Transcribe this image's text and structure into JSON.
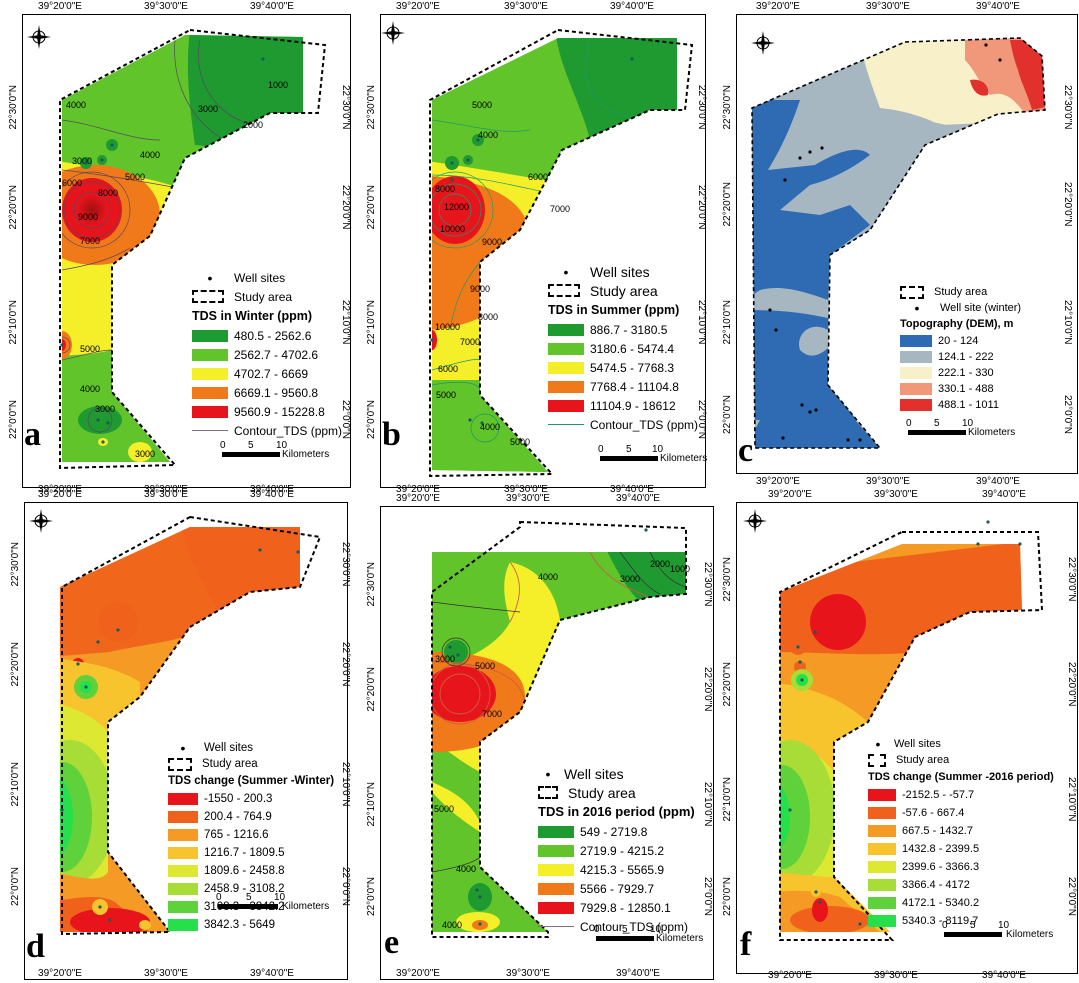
{
  "figure": {
    "x_ticks": [
      "39°20'0\"E",
      "39°30'0\"E",
      "39°40'0\"E"
    ],
    "y_ticks": [
      "22°30'0\"N",
      "22°20'0\"N",
      "22°10'0\"N",
      "22°0'0\"N"
    ],
    "scale": {
      "zero": "0",
      "five": "5",
      "ten": "10",
      "unit": "Kilometers"
    },
    "colors": {
      "dark_green": "#1e9a30",
      "green": "#60c42a",
      "yellow": "#f5ef2a",
      "orange": "#f07a1a",
      "red": "#e8141c",
      "dem_blue": "#2f6bb3",
      "dem_gray": "#a7b7c2",
      "dem_cream": "#f7f0c8",
      "dem_salmon": "#f2987a",
      "dem_red": "#e2302c"
    }
  },
  "panels": [
    {
      "letter": "a",
      "legend": {
        "wells": "Well sites",
        "study": "Study area",
        "title": "TDS in Winter (ppm)",
        "classes": [
          "480.5 - 2562.6",
          "2562.7 - 4702.6",
          "4702.7 - 6669",
          "6669.1 - 9560.8",
          "9560.9 - 15228.8"
        ],
        "colors": [
          "#1e9a30",
          "#60c42a",
          "#f5ef2a",
          "#f07a1a",
          "#e8141c"
        ],
        "contour": "Contour_TDS (ppm)"
      },
      "contour_labels": [
        "1000",
        "2000",
        "3000",
        "4000",
        "4000",
        "5000",
        "6000",
        "7000",
        "8000",
        "9000",
        "3000",
        "5000",
        "3000",
        "4000",
        "3000"
      ]
    },
    {
      "letter": "b",
      "legend": {
        "wells": "Well sites",
        "study": "Study area",
        "title": "TDS in Summer (ppm)",
        "classes": [
          "886.7 - 3180.5",
          "3180.6 - 5474.4",
          "5474.5 - 7768.3",
          "7768.4 - 11104.8",
          "11104.9 - 18612"
        ],
        "colors": [
          "#1e9a30",
          "#60c42a",
          "#f5ef2a",
          "#f07a1a",
          "#e8141c"
        ],
        "contour": "Contour_TDS (ppm)"
      },
      "contour_labels": [
        "5000",
        "4000",
        "6000",
        "7000",
        "8000",
        "10000",
        "12000",
        "9000",
        "9000",
        "10000",
        "8000",
        "7000",
        "6000",
        "5000",
        "4000",
        "5000"
      ]
    },
    {
      "letter": "c",
      "legend": {
        "study": "Study area",
        "wells": "Well site (winter)",
        "title": "Topography (DEM), m",
        "classes": [
          "20 - 124",
          "124.1 - 222",
          "222.1 - 330",
          "330.1 - 488",
          "488.1 - 1011"
        ],
        "colors": [
          "#2f6bb3",
          "#a7b7c2",
          "#f7f0c8",
          "#f2987a",
          "#e2302c"
        ]
      }
    },
    {
      "letter": "d",
      "legend": {
        "wells": "Well sites",
        "study": "Study area",
        "title": "TDS change (Summer -Winter)",
        "classes": [
          "-1550 - 200.3",
          "200.4 - 764.9",
          "765 - 1216.6",
          "1216.7 - 1809.5",
          "1809.6 - 2458.8",
          "2458.9 - 3108.2",
          "3108.3 - 3842.2",
          "3842.3 - 5649"
        ],
        "colors": [
          "#e8141c",
          "#f0621c",
          "#f59a24",
          "#f8c42e",
          "#dde832",
          "#a8dc36",
          "#5fd13a",
          "#25e04a"
        ]
      }
    },
    {
      "letter": "e",
      "legend": {
        "wells": "Well sites",
        "study": "Study area",
        "title": "TDS in 2016 period (ppm)",
        "classes": [
          "549 - 2719.8",
          "2719.9 - 4215.2",
          "4215.3 - 5565.9",
          "5566 - 7929.7",
          "7929.8 - 12850.1"
        ],
        "colors": [
          "#1e9a30",
          "#60c42a",
          "#f5ef2a",
          "#f07a1a",
          "#e8141c"
        ],
        "contour": "Contour_TDS (ppm)"
      },
      "contour_labels": [
        "1000",
        "2000",
        "3000",
        "4000",
        "5000",
        "3000",
        "7000",
        "5000",
        "4000",
        "4000"
      ]
    },
    {
      "letter": "f",
      "legend": {
        "wells": "Well sites",
        "study": "Study area",
        "title": "TDS change (Summer -2016 period)",
        "classes": [
          "-2152.5 - -57.7",
          "-57.6 - 667.4",
          "667.5 - 1432.7",
          "1432.8 - 2399.5",
          "2399.6 - 3366.3",
          "3366.4 - 4172",
          "4172.1 - 5340.2",
          "5340.3 - 8119.7"
        ],
        "colors": [
          "#e8141c",
          "#f0621c",
          "#f59a24",
          "#f8c42e",
          "#dde832",
          "#a8dc36",
          "#5fd13a",
          "#25e04a"
        ]
      }
    }
  ]
}
